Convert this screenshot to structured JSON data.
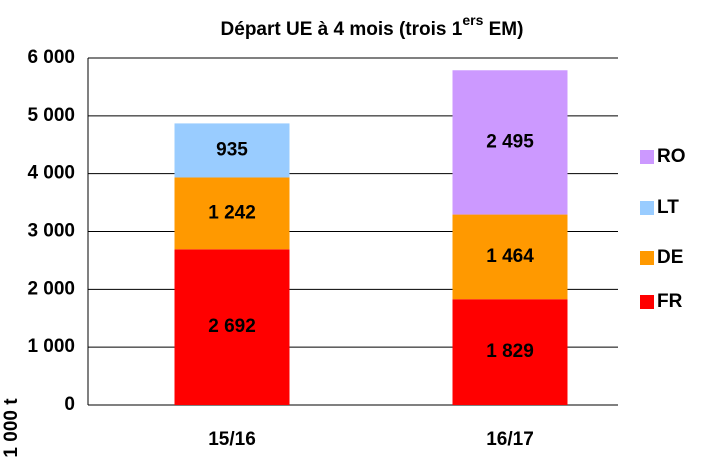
{
  "chart_data": {
    "type": "stacked_bar",
    "title": [
      "Départ UE à 4 mois (trois 1",
      "ers",
      " EM)"
    ],
    "y_label": "1 000 t",
    "categories": [
      "15/16",
      "16/17"
    ],
    "series": [
      {
        "name": "FR",
        "color": "#ff0000",
        "values": [
          2692,
          1829
        ],
        "value_labels": [
          "2 692",
          "1 829"
        ],
        "label_color": "#ffffff"
      },
      {
        "name": "DE",
        "color": "#ff9900",
        "values": [
          1242,
          1464
        ],
        "value_labels": [
          "1 242",
          "1 464"
        ],
        "label_color": "#000000"
      },
      {
        "name": "LT",
        "color": "#99ccff",
        "values": [
          935,
          null
        ],
        "value_labels": [
          "935",
          null
        ],
        "label_color": "#000000"
      },
      {
        "name": "RO",
        "color": "#cc99ff",
        "values": [
          null,
          2495
        ],
        "value_labels": [
          null,
          "2 495"
        ],
        "label_color": "#000000"
      }
    ],
    "ylim": [
      0,
      6000
    ],
    "yticks": [
      0,
      {
        "value": 1000,
        "label": "1 000"
      },
      {
        "value": 2000,
        "label": "2 000"
      },
      {
        "value": 3000,
        "label": "3 000"
      },
      {
        "value": 4000,
        "label": "4 000"
      },
      {
        "value": 5000,
        "label": "5 000"
      },
      {
        "value": 6000,
        "label": "6 000"
      }
    ],
    "grid": true,
    "legend": "right"
  }
}
